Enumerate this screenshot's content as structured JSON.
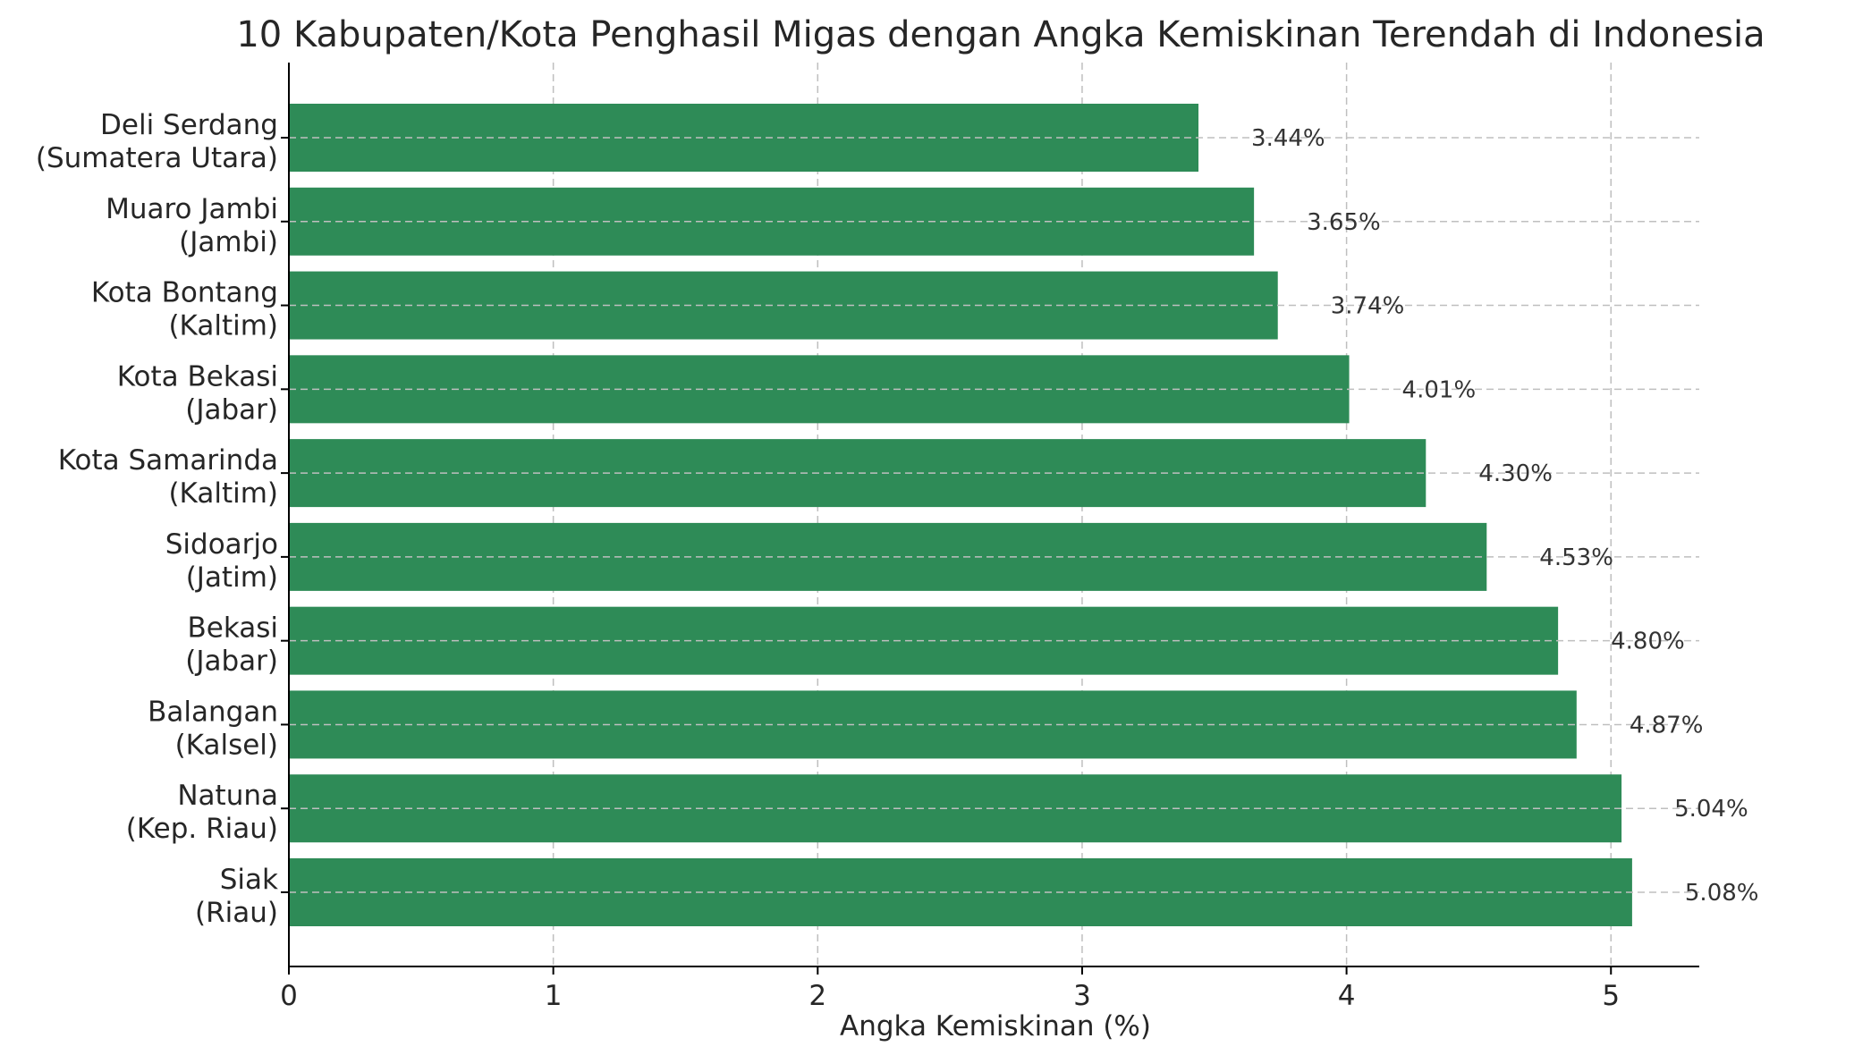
{
  "chart_data": {
    "type": "bar",
    "orientation": "horizontal",
    "title": "10 Kabupaten/Kota Penghasil Migas dengan Angka Kemiskinan Terendah di Indonesia",
    "xlabel": "Angka Kemiskinan (%)",
    "ylabel": "",
    "xlim": [
      0,
      5.334
    ],
    "xticks": [
      0,
      1,
      2,
      3,
      4,
      5
    ],
    "grid": true,
    "bar_color": "#2e8b57",
    "categories": [
      [
        "Deli Serdang",
        "(Sumatera Utara)"
      ],
      [
        "Muaro Jambi",
        "(Jambi)"
      ],
      [
        "Kota Bontang",
        "(Kaltim)"
      ],
      [
        "Kota Bekasi",
        "(Jabar)"
      ],
      [
        "Kota Samarinda",
        "(Kaltim)"
      ],
      [
        "Sidoarjo",
        "(Jatim)"
      ],
      [
        "Bekasi",
        "(Jabar)"
      ],
      [
        "Balangan",
        "(Kalsel)"
      ],
      [
        "Natuna",
        "(Kep. Riau)"
      ],
      [
        "Siak",
        "(Riau)"
      ]
    ],
    "values": [
      3.44,
      3.65,
      3.74,
      4.01,
      4.3,
      4.53,
      4.8,
      4.87,
      5.04,
      5.08
    ],
    "data_labels": [
      "3.44%",
      "3.65%",
      "3.74%",
      "4.01%",
      "4.30%",
      "4.53%",
      "4.80%",
      "4.87%",
      "5.04%",
      "5.08%"
    ]
  }
}
